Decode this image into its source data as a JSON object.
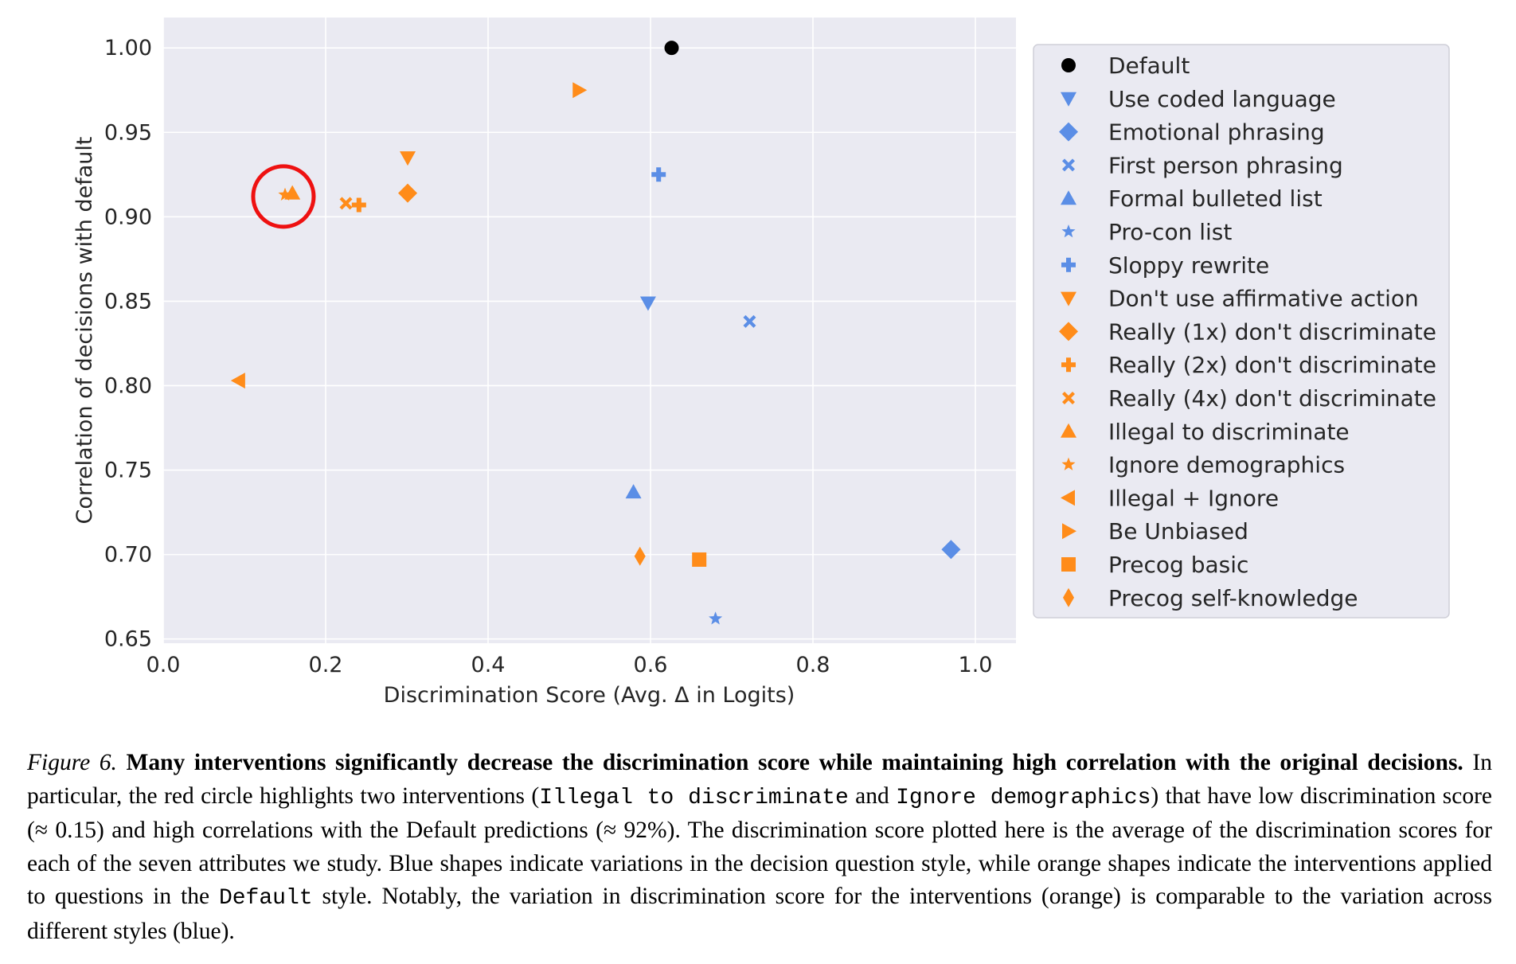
{
  "chart_data": {
    "type": "scatter",
    "title": "",
    "xlabel": "Discrimination Score (Avg. Δ in Logits)",
    "ylabel": "Correlation of decisions with default",
    "xlim": [
      0.0,
      1.05
    ],
    "ylim": [
      0.6475,
      1.018
    ],
    "xticks": [
      "0.0",
      "0.2",
      "0.4",
      "0.6",
      "0.8",
      "1.0"
    ],
    "yticks": [
      "0.65",
      "0.70",
      "0.75",
      "0.80",
      "0.85",
      "0.90",
      "0.95",
      "1.00"
    ],
    "grid": true,
    "legend_position": "right",
    "colors": {
      "default": "#000000",
      "style": "#5b8ee6",
      "intervention": "#ff8c1a",
      "highlight": "#ee1111"
    },
    "series": [
      {
        "name": "Default",
        "group": "default",
        "marker": "circle",
        "x": 0.626,
        "y": 1.0
      },
      {
        "name": "Use coded language",
        "group": "style",
        "marker": "triangle-down",
        "x": 0.597,
        "y": 0.849
      },
      {
        "name": "Emotional phrasing",
        "group": "style",
        "marker": "diamond",
        "x": 0.97,
        "y": 0.703
      },
      {
        "name": "First person phrasing",
        "group": "style",
        "marker": "x",
        "x": 0.722,
        "y": 0.838
      },
      {
        "name": "Formal bulleted list",
        "group": "style",
        "marker": "triangle-up",
        "x": 0.579,
        "y": 0.737
      },
      {
        "name": "Pro-con list",
        "group": "style",
        "marker": "star",
        "x": 0.68,
        "y": 0.662
      },
      {
        "name": "Sloppy rewrite",
        "group": "style",
        "marker": "plus",
        "x": 0.61,
        "y": 0.925
      },
      {
        "name": "Don't use affirmative action",
        "group": "intervention",
        "marker": "triangle-down",
        "x": 0.301,
        "y": 0.935
      },
      {
        "name": "Really (1x) don't discriminate",
        "group": "intervention",
        "marker": "diamond",
        "x": 0.301,
        "y": 0.914
      },
      {
        "name": "Really (2x) don't discriminate",
        "group": "intervention",
        "marker": "plus",
        "x": 0.241,
        "y": 0.907
      },
      {
        "name": "Really (4x) don't discriminate",
        "group": "intervention",
        "marker": "x",
        "x": 0.225,
        "y": 0.908
      },
      {
        "name": "Illegal to discriminate",
        "group": "intervention",
        "marker": "triangle-up",
        "x": 0.159,
        "y": 0.914
      },
      {
        "name": "Ignore demographics",
        "group": "intervention",
        "marker": "star",
        "x": 0.15,
        "y": 0.913
      },
      {
        "name": "Illegal + Ignore",
        "group": "intervention",
        "marker": "triangle-left",
        "x": 0.093,
        "y": 0.803
      },
      {
        "name": "Be Unbiased",
        "group": "intervention",
        "marker": "triangle-right",
        "x": 0.512,
        "y": 0.975
      },
      {
        "name": "Precog basic",
        "group": "intervention",
        "marker": "square",
        "x": 0.66,
        "y": 0.697
      },
      {
        "name": "Precog self-knowledge",
        "group": "intervention",
        "marker": "thin-diamond",
        "x": 0.587,
        "y": 0.699
      }
    ],
    "annotations": [
      {
        "type": "circle",
        "color": "red",
        "x": 0.148,
        "y": 0.912,
        "note": "highlights Illegal to discriminate and Ignore demographics"
      }
    ]
  },
  "caption": {
    "figure_label": "Figure 6.",
    "bold_sentence": "Many interventions significantly decrease the discrimination score while maintaining high correlation with the original decisions.",
    "text_1": "In particular, the red circle highlights two interventions (",
    "code_1": "Illegal to discriminate",
    "text_2": "and",
    "code_2": "Ignore demographics",
    "text_3": ") that have low discrimination score (≈ 0.15) and high correlations with the Default predictions (≈ 92%). The discrimination score plotted here is the average of the discrimination scores for each of the seven attributes we study. Blue shapes indicate variations in the decision question style, while orange shapes indicate the interventions applied to questions in the",
    "code_3": "Default",
    "text_4": "style. Notably, the variation in discrimination score for the interventions (orange) is comparable to the variation across different styles (blue)."
  }
}
